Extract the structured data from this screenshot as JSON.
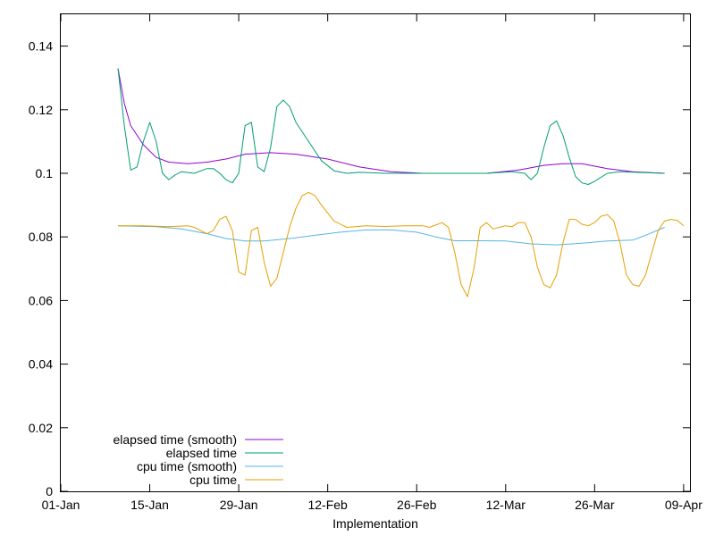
{
  "chart_data": {
    "type": "line",
    "xlabel": "Implementation",
    "ylabel": "",
    "xlim": [
      "2024-01-01",
      "2024-04-09"
    ],
    "ylim": [
      0,
      0.15
    ],
    "x_ticks": [
      "01-Jan",
      "15-Jan",
      "29-Jan",
      "12-Feb",
      "26-Feb",
      "12-Mar",
      "26-Mar",
      "09-Apr"
    ],
    "y_ticks": [
      "0",
      "0.02",
      "0.04",
      "0.06",
      "0.08",
      "0.1",
      "0.12",
      "0.14"
    ],
    "grid": false,
    "legend_position": "bottom-left",
    "series": [
      {
        "name": "elapsed time (smooth)",
        "color": "#9400d3",
        "points": [
          [
            "2024-01-10",
            0.133
          ],
          [
            "2024-01-11",
            0.122
          ],
          [
            "2024-01-12",
            0.115
          ],
          [
            "2024-01-14",
            0.109
          ],
          [
            "2024-01-16",
            0.105
          ],
          [
            "2024-01-18",
            0.1035
          ],
          [
            "2024-01-21",
            0.103
          ],
          [
            "2024-01-24",
            0.1035
          ],
          [
            "2024-01-27",
            0.1045
          ],
          [
            "2024-01-30",
            0.106
          ],
          [
            "2024-02-03",
            0.1065
          ],
          [
            "2024-02-07",
            0.106
          ],
          [
            "2024-02-12",
            0.1045
          ],
          [
            "2024-02-17",
            0.102
          ],
          [
            "2024-02-22",
            0.1005
          ],
          [
            "2024-02-27",
            0.1
          ],
          [
            "2024-03-03",
            0.1
          ],
          [
            "2024-03-08",
            0.1
          ],
          [
            "2024-03-13",
            0.101
          ],
          [
            "2024-03-17",
            0.1025
          ],
          [
            "2024-03-20",
            0.103
          ],
          [
            "2024-03-23",
            0.103
          ],
          [
            "2024-03-27",
            0.1015
          ],
          [
            "2024-03-31",
            0.1005
          ],
          [
            "2024-04-05",
            0.1
          ]
        ]
      },
      {
        "name": "elapsed time",
        "color": "#009e73",
        "points": [
          [
            "2024-01-10",
            0.133
          ],
          [
            "2024-01-11",
            0.115
          ],
          [
            "2024-01-12",
            0.101
          ],
          [
            "2024-01-13",
            0.102
          ],
          [
            "2024-01-14",
            0.11
          ],
          [
            "2024-01-15",
            0.116
          ],
          [
            "2024-01-16",
            0.11
          ],
          [
            "2024-01-17",
            0.1
          ],
          [
            "2024-01-18",
            0.098
          ],
          [
            "2024-01-19",
            0.0995
          ],
          [
            "2024-01-20",
            0.1005
          ],
          [
            "2024-01-22",
            0.1
          ],
          [
            "2024-01-24",
            0.1015
          ],
          [
            "2024-01-25",
            0.1015
          ],
          [
            "2024-01-26",
            0.1
          ],
          [
            "2024-01-27",
            0.098
          ],
          [
            "2024-01-28",
            0.097
          ],
          [
            "2024-01-29",
            0.1
          ],
          [
            "2024-01-30",
            0.115
          ],
          [
            "2024-01-31",
            0.116
          ],
          [
            "2024-02-01",
            0.102
          ],
          [
            "2024-02-02",
            0.1005
          ],
          [
            "2024-02-03",
            0.108
          ],
          [
            "2024-02-04",
            0.121
          ],
          [
            "2024-02-05",
            0.123
          ],
          [
            "2024-02-06",
            0.121
          ],
          [
            "2024-02-07",
            0.116
          ],
          [
            "2024-02-09",
            0.11
          ],
          [
            "2024-02-11",
            0.104
          ],
          [
            "2024-02-13",
            0.1008
          ],
          [
            "2024-02-15",
            0.1
          ],
          [
            "2024-02-17",
            0.1003
          ],
          [
            "2024-02-21",
            0.1
          ],
          [
            "2024-02-26",
            0.1
          ],
          [
            "2024-03-03",
            0.1
          ],
          [
            "2024-03-08",
            0.1
          ],
          [
            "2024-03-12",
            0.1005
          ],
          [
            "2024-03-14",
            0.1
          ],
          [
            "2024-03-15",
            0.098
          ],
          [
            "2024-03-16",
            0.1
          ],
          [
            "2024-03-17",
            0.108
          ],
          [
            "2024-03-18",
            0.115
          ],
          [
            "2024-03-19",
            0.1165
          ],
          [
            "2024-03-20",
            0.112
          ],
          [
            "2024-03-21",
            0.105
          ],
          [
            "2024-03-22",
            0.099
          ],
          [
            "2024-03-23",
            0.097
          ],
          [
            "2024-03-24",
            0.0965
          ],
          [
            "2024-03-25",
            0.0975
          ],
          [
            "2024-03-27",
            0.1
          ],
          [
            "2024-03-29",
            0.1005
          ],
          [
            "2024-04-05",
            0.1
          ]
        ]
      },
      {
        "name": "cpu time (smooth)",
        "color": "#56b4e9",
        "points": [
          [
            "2024-01-10",
            0.0835
          ],
          [
            "2024-01-16",
            0.0832
          ],
          [
            "2024-01-20",
            0.0825
          ],
          [
            "2024-01-24",
            0.081
          ],
          [
            "2024-01-27",
            0.0795
          ],
          [
            "2024-01-30",
            0.0787
          ],
          [
            "2024-02-02",
            0.0787
          ],
          [
            "2024-02-06",
            0.0795
          ],
          [
            "2024-02-10",
            0.0805
          ],
          [
            "2024-02-14",
            0.0815
          ],
          [
            "2024-02-18",
            0.0822
          ],
          [
            "2024-02-22",
            0.0822
          ],
          [
            "2024-02-26",
            0.0815
          ],
          [
            "2024-02-29",
            0.08
          ],
          [
            "2024-03-03",
            0.0788
          ],
          [
            "2024-03-07",
            0.0788
          ],
          [
            "2024-03-11",
            0.0787
          ],
          [
            "2024-03-15",
            0.0778
          ],
          [
            "2024-03-19",
            0.0775
          ],
          [
            "2024-03-23",
            0.078
          ],
          [
            "2024-03-27",
            0.0787
          ],
          [
            "2024-03-31",
            0.079
          ],
          [
            "2024-04-02",
            0.0805
          ],
          [
            "2024-04-05",
            0.083
          ]
        ]
      },
      {
        "name": "cpu time",
        "color": "#e69f00",
        "points": [
          [
            "2024-01-10",
            0.0835
          ],
          [
            "2024-01-14",
            0.0835
          ],
          [
            "2024-01-18",
            0.0832
          ],
          [
            "2024-01-21",
            0.0835
          ],
          [
            "2024-01-22",
            0.083
          ],
          [
            "2024-01-23",
            0.082
          ],
          [
            "2024-01-24",
            0.081
          ],
          [
            "2024-01-25",
            0.082
          ],
          [
            "2024-01-26",
            0.0855
          ],
          [
            "2024-01-27",
            0.0865
          ],
          [
            "2024-01-28",
            0.082
          ],
          [
            "2024-01-29",
            0.069
          ],
          [
            "2024-01-30",
            0.068
          ],
          [
            "2024-01-31",
            0.082
          ],
          [
            "2024-02-01",
            0.083
          ],
          [
            "2024-02-02",
            0.072
          ],
          [
            "2024-02-03",
            0.0645
          ],
          [
            "2024-02-04",
            0.067
          ],
          [
            "2024-02-06",
            0.083
          ],
          [
            "2024-02-07",
            0.089
          ],
          [
            "2024-02-08",
            0.093
          ],
          [
            "2024-02-09",
            0.094
          ],
          [
            "2024-02-10",
            0.093
          ],
          [
            "2024-02-11",
            0.09
          ],
          [
            "2024-02-13",
            0.085
          ],
          [
            "2024-02-15",
            0.083
          ],
          [
            "2024-02-18",
            0.0835
          ],
          [
            "2024-02-21",
            0.0833
          ],
          [
            "2024-02-24",
            0.0835
          ],
          [
            "2024-02-27",
            0.0835
          ],
          [
            "2024-02-28",
            0.083
          ],
          [
            "2024-03-01",
            0.0845
          ],
          [
            "2024-03-02",
            0.083
          ],
          [
            "2024-03-03",
            0.075
          ],
          [
            "2024-03-04",
            0.065
          ],
          [
            "2024-03-05",
            0.0612
          ],
          [
            "2024-03-06",
            0.07
          ],
          [
            "2024-03-07",
            0.083
          ],
          [
            "2024-03-08",
            0.0845
          ],
          [
            "2024-03-09",
            0.0825
          ],
          [
            "2024-03-11",
            0.0835
          ],
          [
            "2024-03-12",
            0.0832
          ],
          [
            "2024-03-13",
            0.0845
          ],
          [
            "2024-03-14",
            0.0845
          ],
          [
            "2024-03-15",
            0.08
          ],
          [
            "2024-03-16",
            0.0705
          ],
          [
            "2024-03-17",
            0.065
          ],
          [
            "2024-03-18",
            0.064
          ],
          [
            "2024-03-19",
            0.068
          ],
          [
            "2024-03-20",
            0.078
          ],
          [
            "2024-03-21",
            0.0855
          ],
          [
            "2024-03-22",
            0.0855
          ],
          [
            "2024-03-23",
            0.084
          ],
          [
            "2024-03-24",
            0.0835
          ],
          [
            "2024-03-25",
            0.0845
          ],
          [
            "2024-03-26",
            0.0865
          ],
          [
            "2024-03-27",
            0.087
          ],
          [
            "2024-03-28",
            0.085
          ],
          [
            "2024-03-29",
            0.078
          ],
          [
            "2024-03-30",
            0.068
          ],
          [
            "2024-03-31",
            0.065
          ],
          [
            "2024-04-01",
            0.0645
          ],
          [
            "2024-04-02",
            0.068
          ],
          [
            "2024-04-03",
            0.075
          ],
          [
            "2024-04-04",
            0.082
          ],
          [
            "2024-04-05",
            0.085
          ],
          [
            "2024-04-06",
            0.0855
          ],
          [
            "2024-04-07",
            0.0852
          ],
          [
            "2024-04-08",
            0.0835
          ]
        ]
      }
    ]
  }
}
